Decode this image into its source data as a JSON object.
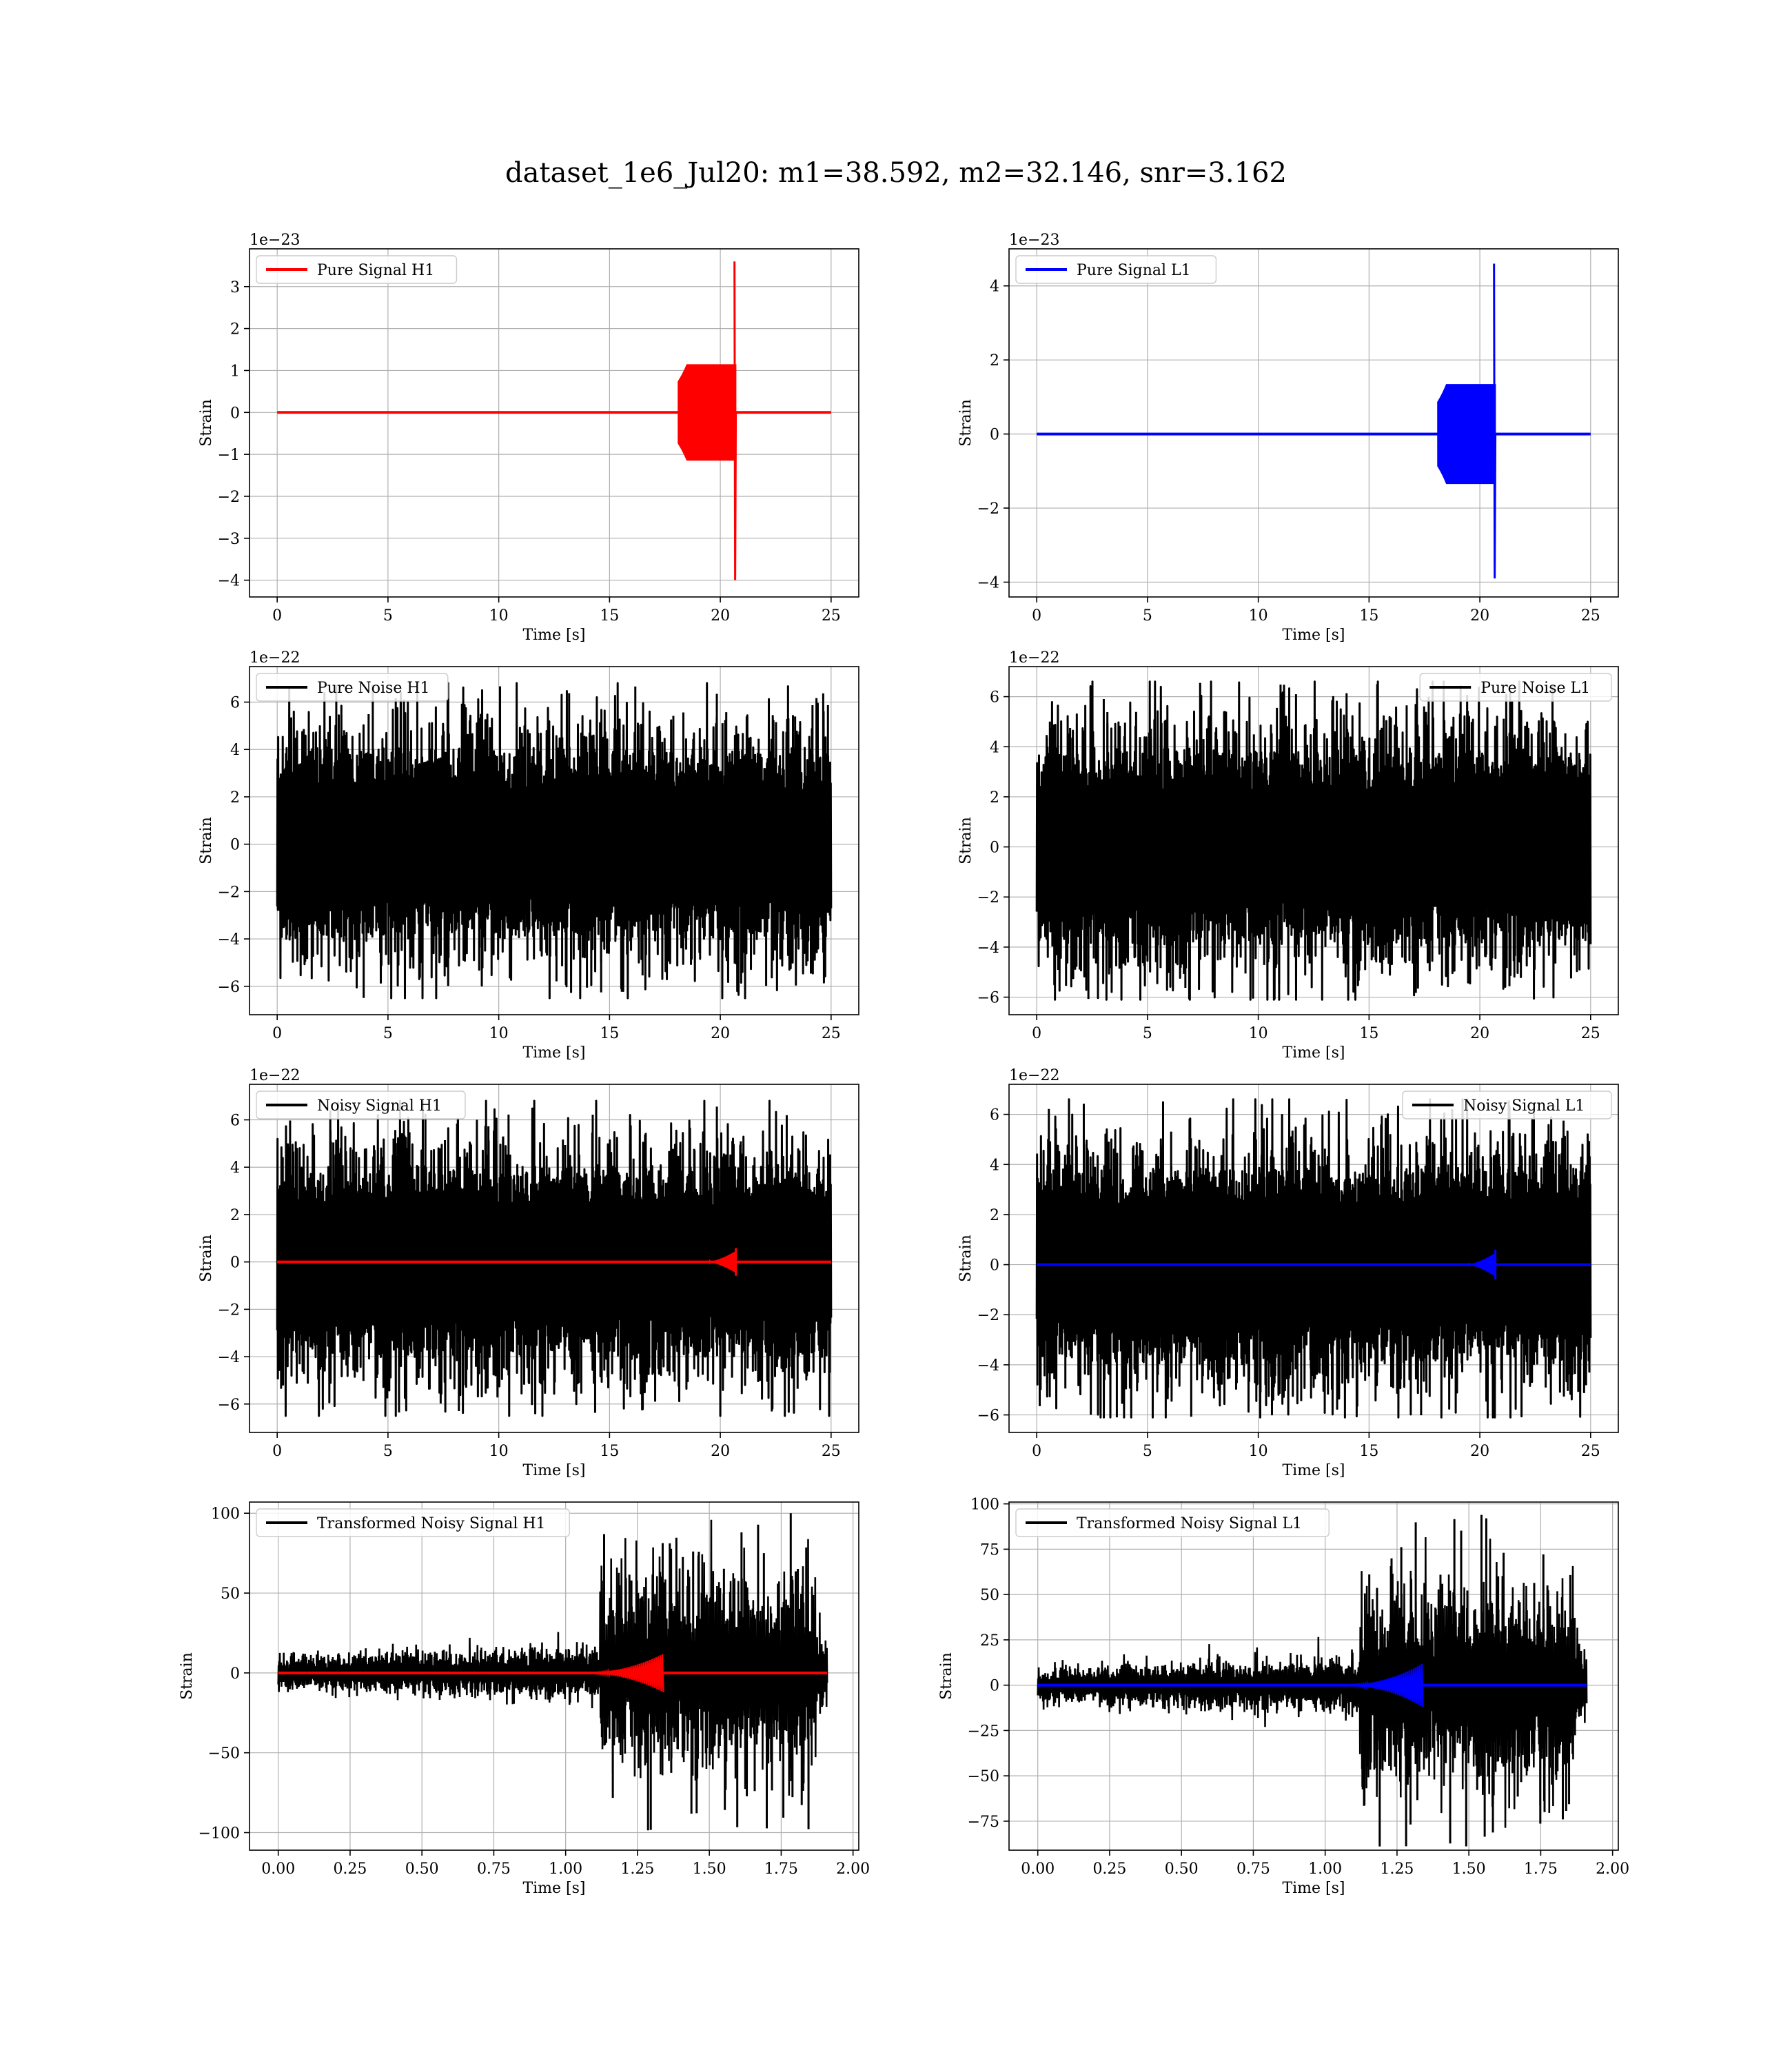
{
  "figure": {
    "title": "dataset_1e6_Jul20: m1=38.592, m2=32.146, snr=3.162"
  },
  "chart_data": [
    {
      "type": "line",
      "name": "pure-signal-h1",
      "legend": [
        "Pure Signal H1"
      ],
      "legend_loc": "upper left",
      "color": "#ff0000",
      "kind": "chirp",
      "offset_label": "1e−23",
      "xlabel": "Time [s]",
      "ylabel": "Strain",
      "xlim": [
        -1.25,
        26.25
      ],
      "ylim": [
        -4.4,
        3.9
      ],
      "xticks": [
        0,
        5,
        10,
        15,
        20,
        25
      ],
      "xtick_labels": [
        "0",
        "5",
        "10",
        "15",
        "20",
        "25"
      ],
      "yticks": [
        -4,
        -3,
        -2,
        -1,
        0,
        1,
        2,
        3
      ],
      "ytick_labels": [
        "−4",
        "−3",
        "−2",
        "−1",
        "0",
        "1",
        "2",
        "3"
      ],
      "grid": true,
      "waveform": {
        "t_start": 0,
        "t_end": 25,
        "t_merger": 20.7,
        "plateau_amp": 1.15,
        "peak_max": 3.6,
        "peak_min": -4.0
      }
    },
    {
      "type": "line",
      "name": "pure-signal-l1",
      "legend": [
        "Pure Signal L1"
      ],
      "legend_loc": "upper left",
      "color": "#0000ff",
      "kind": "chirp",
      "offset_label": "1e−23",
      "xlabel": "Time [s]",
      "ylabel": "Strain",
      "xlim": [
        -1.25,
        26.25
      ],
      "ylim": [
        -4.4,
        5.0
      ],
      "xticks": [
        0,
        5,
        10,
        15,
        20,
        25
      ],
      "xtick_labels": [
        "0",
        "5",
        "10",
        "15",
        "20",
        "25"
      ],
      "yticks": [
        -4,
        -2,
        0,
        2,
        4
      ],
      "ytick_labels": [
        "−4",
        "−2",
        "0",
        "2",
        "4"
      ],
      "grid": true,
      "waveform": {
        "t_start": 0,
        "t_end": 25,
        "t_merger": 20.7,
        "plateau_amp": 1.35,
        "peak_max": 4.6,
        "peak_min": -3.9
      }
    },
    {
      "type": "line",
      "name": "pure-noise-h1",
      "legend": [
        "Pure Noise H1"
      ],
      "legend_loc": "upper left",
      "color": "#000000",
      "kind": "noise",
      "offset_label": "1e−22",
      "xlabel": "Time [s]",
      "ylabel": "Strain",
      "xlim": [
        -1.25,
        26.25
      ],
      "ylim": [
        -7.2,
        7.5
      ],
      "xticks": [
        0,
        5,
        10,
        15,
        20,
        25
      ],
      "xtick_labels": [
        "0",
        "5",
        "10",
        "15",
        "20",
        "25"
      ],
      "yticks": [
        -6,
        -4,
        -2,
        0,
        2,
        4,
        6
      ],
      "ytick_labels": [
        "−6",
        "−4",
        "−2",
        "0",
        "2",
        "4",
        "6"
      ],
      "grid": true,
      "waveform": {
        "t_start": 0,
        "t_end": 25,
        "band": 3.5,
        "peak_max": 6.8,
        "peak_min": -6.5
      }
    },
    {
      "type": "line",
      "name": "pure-noise-l1",
      "legend": [
        "Pure Noise L1"
      ],
      "legend_loc": "upper right",
      "color": "#000000",
      "kind": "noise",
      "offset_label": "1e−22",
      "xlabel": "Time [s]",
      "ylabel": "Strain",
      "xlim": [
        -1.25,
        26.25
      ],
      "ylim": [
        -6.7,
        7.2
      ],
      "xticks": [
        0,
        5,
        10,
        15,
        20,
        25
      ],
      "xtick_labels": [
        "0",
        "5",
        "10",
        "15",
        "20",
        "25"
      ],
      "yticks": [
        -6,
        -4,
        -2,
        0,
        2,
        4,
        6
      ],
      "ytick_labels": [
        "−6",
        "−4",
        "−2",
        "0",
        "2",
        "4",
        "6"
      ],
      "grid": true,
      "waveform": {
        "t_start": 0,
        "t_end": 25,
        "band": 3.4,
        "peak_max": 6.6,
        "peak_min": -6.1
      }
    },
    {
      "type": "line",
      "name": "noisy-signal-h1",
      "legend": [
        "Noisy Signal H1"
      ],
      "legend_loc": "upper left",
      "color": "#000000",
      "overlay_color": "#ff0000",
      "kind": "noise+signal",
      "offset_label": "1e−22",
      "xlabel": "Time [s]",
      "ylabel": "Strain",
      "xlim": [
        -1.25,
        26.25
      ],
      "ylim": [
        -7.2,
        7.5
      ],
      "xticks": [
        0,
        5,
        10,
        15,
        20,
        25
      ],
      "xtick_labels": [
        "0",
        "5",
        "10",
        "15",
        "20",
        "25"
      ],
      "yticks": [
        -6,
        -4,
        -2,
        0,
        2,
        4,
        6
      ],
      "ytick_labels": [
        "−6",
        "−4",
        "−2",
        "0",
        "2",
        "4",
        "6"
      ],
      "grid": true,
      "waveform": {
        "t_start": 0,
        "t_end": 25,
        "band": 3.5,
        "peak_max": 6.8,
        "peak_min": -6.5,
        "t_merger": 20.7,
        "signal_amp": 0.45
      }
    },
    {
      "type": "line",
      "name": "noisy-signal-l1",
      "legend": [
        "Noisy Signal L1"
      ],
      "legend_loc": "upper right",
      "color": "#000000",
      "overlay_color": "#0000ff",
      "kind": "noise+signal",
      "offset_label": "1e−22",
      "xlabel": "Time [s]",
      "ylabel": "Strain",
      "xlim": [
        -1.25,
        26.25
      ],
      "ylim": [
        -6.7,
        7.2
      ],
      "xticks": [
        0,
        5,
        10,
        15,
        20,
        25
      ],
      "xtick_labels": [
        "0",
        "5",
        "10",
        "15",
        "20",
        "25"
      ],
      "yticks": [
        -6,
        -4,
        -2,
        0,
        2,
        4,
        6
      ],
      "ytick_labels": [
        "−6",
        "−4",
        "−2",
        "0",
        "2",
        "4",
        "6"
      ],
      "grid": true,
      "waveform": {
        "t_start": 0,
        "t_end": 25,
        "band": 3.4,
        "peak_max": 6.6,
        "peak_min": -6.1,
        "t_merger": 20.7,
        "signal_amp": 0.46
      }
    },
    {
      "type": "line",
      "name": "transformed-noisy-signal-h1",
      "legend": [
        "Transformed Noisy Signal H1"
      ],
      "legend_loc": "upper left",
      "color": "#000000",
      "overlay_color": "#ff0000",
      "kind": "transformed",
      "offset_label": "",
      "xlabel": "Time [s]",
      "ylabel": "Strain",
      "xlim": [
        -0.1,
        2.02
      ],
      "ylim": [
        -111,
        107
      ],
      "xticks": [
        0.0,
        0.25,
        0.5,
        0.75,
        1.0,
        1.25,
        1.5,
        1.75,
        2.0
      ],
      "xtick_labels": [
        "0.00",
        "0.25",
        "0.50",
        "0.75",
        "1.00",
        "1.25",
        "1.50",
        "1.75",
        "2.00"
      ],
      "yticks": [
        -100,
        -50,
        0,
        50,
        100
      ],
      "ytick_labels": [
        "−100",
        "−50",
        "0",
        "50",
        "100"
      ],
      "grid": true,
      "waveform": {
        "t_start": 0,
        "t_end": 1.91,
        "t_jump": 1.12,
        "t_jump_end": 1.87,
        "low_band": 10,
        "high_band": 55,
        "peak_max": 101,
        "peak_min": -108,
        "t_signal_start": 1.05,
        "t_signal_end": 1.34,
        "signal_amp": 12
      }
    },
    {
      "type": "line",
      "name": "transformed-noisy-signal-l1",
      "legend": [
        "Transformed Noisy Signal L1"
      ],
      "legend_loc": "upper left",
      "color": "#000000",
      "overlay_color": "#0000ff",
      "kind": "transformed",
      "offset_label": "",
      "xlabel": "Time [s]",
      "ylabel": "Strain",
      "xlim": [
        -0.1,
        2.02
      ],
      "ylim": [
        -91,
        101
      ],
      "xticks": [
        0.0,
        0.25,
        0.5,
        0.75,
        1.0,
        1.25,
        1.5,
        1.75,
        2.0
      ],
      "xtick_labels": [
        "0.00",
        "0.25",
        "0.50",
        "0.75",
        "1.00",
        "1.25",
        "1.50",
        "1.75",
        "2.00"
      ],
      "yticks": [
        -75,
        -50,
        -25,
        0,
        25,
        50,
        75,
        100
      ],
      "ytick_labels": [
        "−75",
        "−50",
        "−25",
        "0",
        "25",
        "50",
        "75",
        "100"
      ],
      "grid": true,
      "waveform": {
        "t_start": 0,
        "t_end": 1.91,
        "t_jump": 1.12,
        "t_jump_end": 1.87,
        "low_band": 9,
        "high_band": 50,
        "peak_max": 96,
        "peak_min": -90,
        "t_signal_start": 1.05,
        "t_signal_end": 1.34,
        "signal_amp": 12
      }
    }
  ]
}
